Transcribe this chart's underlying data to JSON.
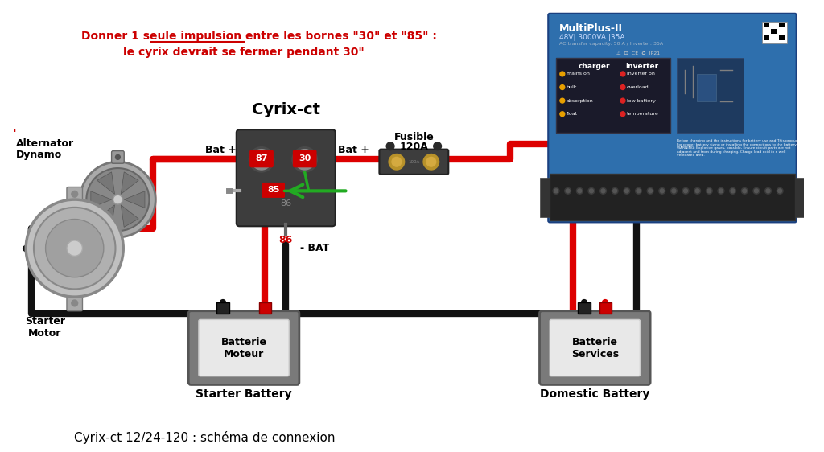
{
  "title": "Cyrix-ct 12/24-120 : schéma de connexion",
  "bg_color": "#ffffff",
  "instruction_line1": "Donner 1 seule impulsion entre les bornes \"30\" et \"85\" :",
  "instruction_line2": "le cyrix devrait se fermer pendant 30\"",
  "cyrix_label": "Cyrix-ct",
  "fusible_label1": "Fusible",
  "fusible_label2": "120A",
  "alternator_label": "’Alternator\nDynamo",
  "starter_label": "Starter\nMotor",
  "bat_motor_label": "Batterie\nMoteur",
  "bat_service_label": "Batterie\nServices",
  "starter_battery_label": "Starter Battery",
  "domestic_battery_label": "Domestic Battery",
  "bat_plus_left": "Bat +",
  "bat_plus_right": "Bat +",
  "minus_bat_label": "- BAT",
  "label_86": "86",
  "label_87": "87",
  "label_30": "30",
  "label_85": "85",
  "label_86_body": "86",
  "multiplus_title": "MultiPlus-II",
  "multiplus_sub1": "48V| 3000VA| |35|",
  "red_color": "#cc0000",
  "black_color": "#111111",
  "green_color": "#22aa22",
  "dark_gray": "#444444",
  "med_gray": "#888888",
  "light_gray": "#aaaaaa",
  "wire_red": "#dd0000",
  "wire_black": "#111111",
  "blue_mp": "#2e6fad",
  "battery_gray": "#7a7a7a",
  "battery_white": "#e8e8e8"
}
